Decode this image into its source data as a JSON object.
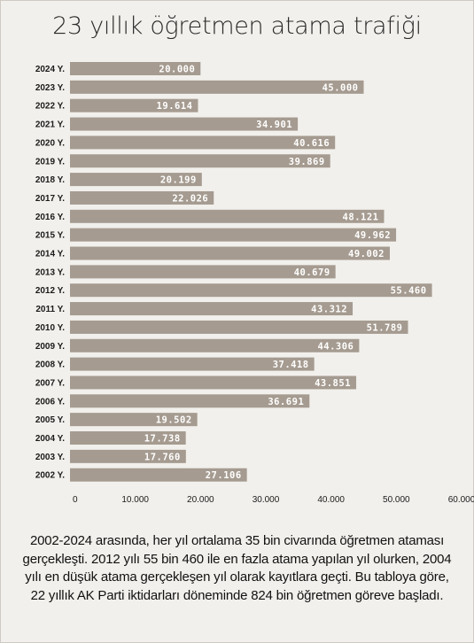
{
  "title": "23 yıllık öğretmen atama trafiği",
  "caption": "2002-2024 arasında, her yıl ortalama 35 bin civarında öğretmen ataması gerçekleşti. 2012 yılı 55 bin 460 ile en fazla atama yapılan yıl olurken, 2004 yılı en düşük atama gerçekleşen yıl olarak kayıtlara geçti. Bu tabloya göre, 22 yıllık AK Parti iktidarları döneminde 824 bin öğretmen göreve başladı.",
  "colors": {
    "bar": "#a59b90",
    "background": "#f2f0ec"
  },
  "chart_data": {
    "type": "bar",
    "orientation": "horizontal",
    "title": "23 yıllık öğretmen atama trafiği",
    "xlabel": "",
    "ylabel": "",
    "xlim": [
      0,
      60000
    ],
    "grid": false,
    "x_ticks": [
      "0",
      "10.000",
      "20.000",
      "30.000",
      "40.000",
      "50.000",
      "60.000"
    ],
    "categories": [
      "2024 Y.",
      "2023 Y.",
      "2022 Y.",
      "2021 Y.",
      "2020 Y.",
      "2019 Y.",
      "2018 Y.",
      "2017 Y.",
      "2016 Y.",
      "2015 Y.",
      "2014 Y.",
      "2013 Y.",
      "2012 Y.",
      "2011 Y.",
      "2010 Y.",
      "2009 Y.",
      "2008 Y.",
      "2007 Y.",
      "2006 Y.",
      "2005 Y.",
      "2004 Y.",
      "2003 Y.",
      "2002 Y."
    ],
    "values": [
      20000,
      45000,
      19614,
      34901,
      40616,
      39869,
      20199,
      22026,
      48121,
      49962,
      49002,
      40679,
      55460,
      43312,
      51789,
      44306,
      37418,
      43851,
      36691,
      19502,
      17738,
      17760,
      27106
    ],
    "value_labels": [
      "20.000",
      "45.000",
      "19.614",
      "34.901",
      "40.616",
      "39.869",
      "20.199",
      "22.026",
      "48.121",
      "49.962",
      "49.002",
      "40.679",
      "55.460",
      "43.312",
      "51.789",
      "44.306",
      "37.418",
      "43.851",
      "36.691",
      "19.502",
      "17.738",
      "17.760",
      "27.106"
    ]
  }
}
